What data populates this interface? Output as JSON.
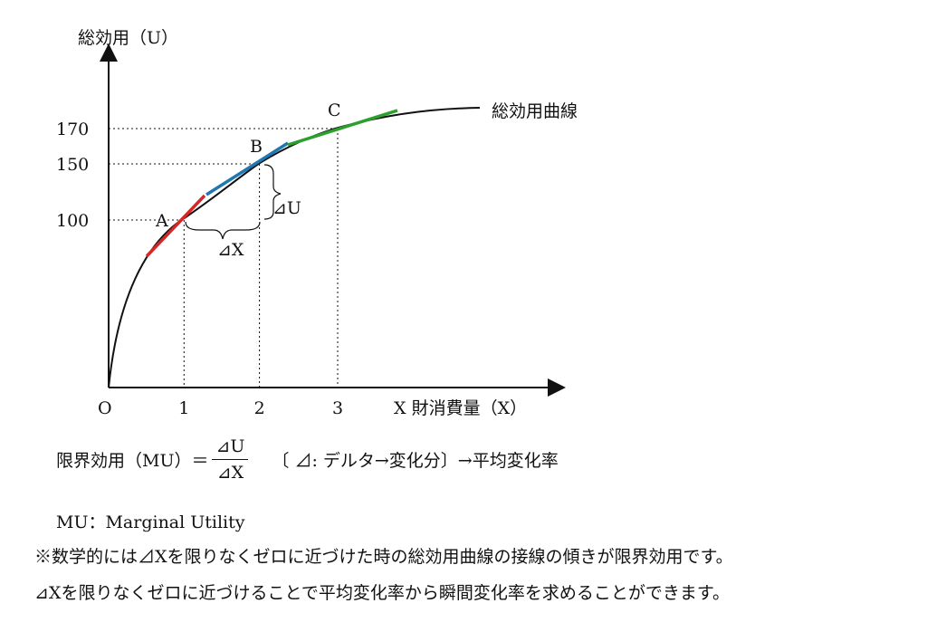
{
  "chart_data": {
    "type": "line",
    "y_axis_label": "総効用（U）",
    "x_axis_label": "X 財消費量（X）",
    "origin_label": "O",
    "x_ticks": [
      "1",
      "2",
      "3"
    ],
    "y_ticks": [
      "100",
      "150",
      "170"
    ],
    "curve_label": "総効用曲線",
    "points": [
      {
        "label": "A",
        "x": 1,
        "y": 100
      },
      {
        "label": "B",
        "x": 2,
        "y": 150
      },
      {
        "label": "C",
        "x": 3,
        "y": 170
      }
    ],
    "delta_x_label": "⊿X",
    "delta_u_label": "⊿U",
    "tangent_colors": [
      "#d62728",
      "#1f77b4",
      "#2ca02c"
    ],
    "grid": false
  },
  "text": {
    "formula_prefix": "限界効用（MU）＝",
    "formula_numerator": "⊿U",
    "formula_denominator": "⊿X",
    "formula_note": "〔 ⊿: デルタ→変化分〕→平均変化率",
    "mu_definition": "MU：Marginal Utility",
    "note1": "※数学的には⊿Xを限りなくゼロに近づけた時の総効用曲線の接線の傾きが限界効用です。",
    "note2": "⊿Xを限りなくゼロに近づけることで平均変化率から瞬間変化率を求めることができます。"
  }
}
